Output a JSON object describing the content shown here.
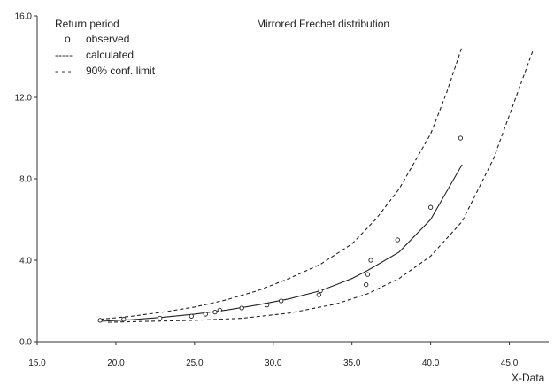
{
  "chart_data": {
    "type": "scatter",
    "title": "Mirrored Frechet distribution",
    "xlabel": "X-Data",
    "ylabel": "",
    "xlim": [
      15.0,
      47.5
    ],
    "ylim": [
      0.0,
      16.0
    ],
    "x_ticks": [
      "15.0",
      "20.0",
      "25.0",
      "30.0",
      "35.0",
      "40.0",
      "45.0"
    ],
    "x_tick_values": [
      15,
      20,
      25,
      30,
      35,
      40,
      45
    ],
    "y_ticks": [
      "0.0",
      "4.0",
      "8.0",
      "12.0",
      "16.0"
    ],
    "y_tick_values": [
      0,
      4,
      8,
      12,
      16
    ],
    "grid": false,
    "legend": {
      "title": "Return period",
      "position": "top-left",
      "entries": [
        {
          "symbol": "o",
          "label": "observed"
        },
        {
          "symbol": "-----",
          "label": "calculated"
        },
        {
          "symbol": "- - -",
          "label": "90% conf. limit"
        }
      ]
    },
    "series": [
      {
        "name": "observed",
        "style": "markers",
        "x": [
          19.0,
          20.5,
          22.8,
          24.8,
          25.7,
          26.3,
          26.6,
          28.0,
          29.6,
          30.5,
          32.9,
          33.0,
          35.9,
          36.0,
          36.2,
          37.9,
          40.0,
          41.9
        ],
        "y": [
          1.05,
          1.1,
          1.15,
          1.25,
          1.35,
          1.45,
          1.55,
          1.65,
          1.8,
          2.0,
          2.3,
          2.5,
          2.8,
          3.3,
          4.0,
          5.0,
          6.6,
          10.0
        ]
      },
      {
        "name": "calculated",
        "style": "solid",
        "x": [
          19.0,
          21.0,
          23.0,
          25.0,
          27.0,
          29.0,
          31.0,
          33.0,
          35.0,
          36.0,
          38.0,
          40.0,
          42.0
        ],
        "y": [
          1.0,
          1.08,
          1.2,
          1.35,
          1.55,
          1.8,
          2.1,
          2.5,
          3.1,
          3.5,
          4.4,
          6.0,
          8.7
        ]
      },
      {
        "name": "90% conf. limit (upper)",
        "style": "dashed",
        "x": [
          19.0,
          21.0,
          23.0,
          25.0,
          27.0,
          29.0,
          31.0,
          33.0,
          35.0,
          36.5,
          38.0,
          40.0,
          41.0,
          42.0
        ],
        "y": [
          1.1,
          1.25,
          1.45,
          1.7,
          2.05,
          2.5,
          3.1,
          3.8,
          4.8,
          6.0,
          7.5,
          10.2,
          12.2,
          14.5
        ]
      },
      {
        "name": "90% conf. limit (lower)",
        "style": "dashed",
        "x": [
          19.5,
          22.0,
          25.0,
          28.0,
          31.0,
          34.0,
          36.0,
          38.0,
          40.0,
          42.0,
          44.0,
          46.5
        ],
        "y": [
          0.95,
          1.0,
          1.05,
          1.15,
          1.4,
          1.85,
          2.35,
          3.1,
          4.2,
          5.9,
          9.0,
          14.3
        ]
      }
    ]
  }
}
